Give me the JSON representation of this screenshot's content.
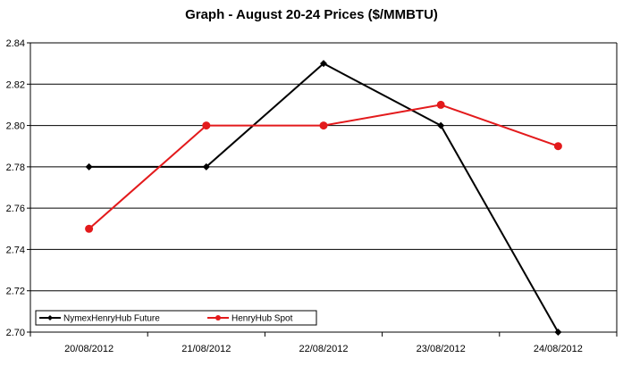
{
  "chart_data": {
    "type": "line",
    "title": "Graph - August 20-24  Prices ($/MMBTU)",
    "xlabel": "",
    "ylabel": "",
    "categories": [
      "20/08/2012",
      "21/08/2012",
      "22/08/2012",
      "23/08/2012",
      "24/08/2012"
    ],
    "ylim": [
      2.7,
      2.84
    ],
    "yticks": [
      "2.70",
      "2.72",
      "2.74",
      "2.76",
      "2.78",
      "2.80",
      "2.82",
      "2.84"
    ],
    "grid": true,
    "legend_position": "bottom-left",
    "series": [
      {
        "name": "NymexHenryHub Future",
        "color": "#000000",
        "marker": "diamond",
        "values": [
          2.78,
          2.78,
          2.83,
          2.8,
          2.7
        ]
      },
      {
        "name": "HenryHub Spot",
        "color": "#e31a1c",
        "marker": "circle",
        "values": [
          2.75,
          2.8,
          2.8,
          2.81,
          2.79
        ]
      }
    ]
  }
}
